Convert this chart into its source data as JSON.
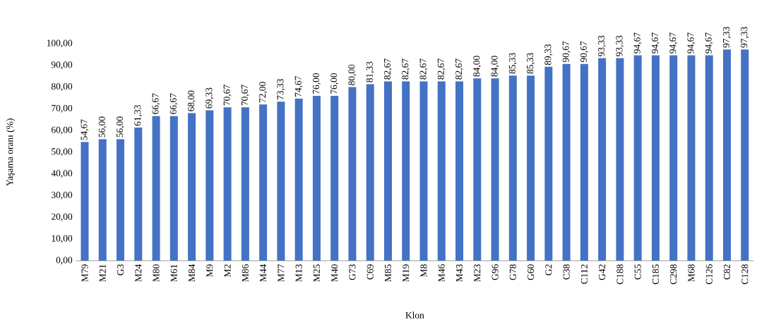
{
  "chart_data": {
    "type": "bar",
    "xlabel": "Klon",
    "ylabel": "Yaşama oranı (%)",
    "color": "#4472c4",
    "categories": [
      "M79",
      "M21",
      "G3",
      "M24",
      "M80",
      "M61",
      "M84",
      "M9",
      "M2",
      "M86",
      "M44",
      "M77",
      "M13",
      "M25",
      "M40",
      "G73",
      "C69",
      "M85",
      "M19",
      "M8",
      "M46",
      "M43",
      "M23",
      "G96",
      "G78",
      "G60",
      "G2",
      "C38",
      "C112",
      "G42",
      "C188",
      "C55",
      "C185",
      "C298",
      "M68",
      "C126",
      "C82",
      "C128"
    ],
    "values": [
      54.67,
      56,
      56,
      61.33,
      66.67,
      66.67,
      68,
      69.33,
      70.67,
      70.67,
      72,
      73.33,
      74.67,
      76,
      76,
      80,
      81.33,
      82.67,
      82.67,
      82.67,
      82.67,
      82.67,
      84,
      84,
      85.33,
      85.33,
      89.33,
      90.67,
      90.67,
      93.33,
      93.33,
      94.67,
      94.67,
      94.67,
      94.67,
      94.67,
      97.33,
      97.33
    ],
    "value_labels": [
      "54,67",
      "56,00",
      "56,00",
      "61,33",
      "66,67",
      "66,67",
      "68,00",
      "69,33",
      "70,67",
      "70,67",
      "72,00",
      "73,33",
      "74,67",
      "76,00",
      "76,00",
      "80,00",
      "81,33",
      "82,67",
      "82,67",
      "82,67",
      "82,67",
      "82,67",
      "84,00",
      "84,00",
      "85,33",
      "85,33",
      "89,33",
      "90,67",
      "90,67",
      "93,33",
      "93,33",
      "94,67",
      "94,67",
      "94,67",
      "94,67",
      "94,67",
      "97,33",
      "97,33"
    ],
    "ylim": [
      0,
      100
    ],
    "yticks": [
      {
        "value": 0,
        "label": "0,00"
      },
      {
        "value": 10,
        "label": "10,00"
      },
      {
        "value": 20,
        "label": "20,00"
      },
      {
        "value": 30,
        "label": "30,00"
      },
      {
        "value": 40,
        "label": "40,00"
      },
      {
        "value": 50,
        "label": "50,00"
      },
      {
        "value": 60,
        "label": "60,00"
      },
      {
        "value": 70,
        "label": "70,00"
      },
      {
        "value": 80,
        "label": "80,00"
      },
      {
        "value": 90,
        "label": "90,00"
      },
      {
        "value": 100,
        "label": "100,00"
      }
    ],
    "data_labels": false
  }
}
